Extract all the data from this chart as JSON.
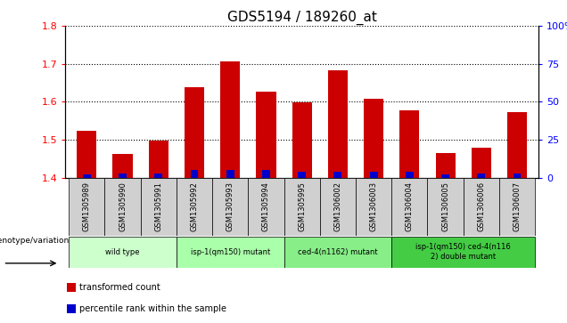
{
  "title": "GDS5194 / 189260_at",
  "samples": [
    "GSM1305989",
    "GSM1305990",
    "GSM1305991",
    "GSM1305992",
    "GSM1305993",
    "GSM1305994",
    "GSM1305995",
    "GSM1306002",
    "GSM1306003",
    "GSM1306004",
    "GSM1306005",
    "GSM1306006",
    "GSM1306007"
  ],
  "transformed_count": [
    1.524,
    1.463,
    1.497,
    1.638,
    1.706,
    1.627,
    1.598,
    1.682,
    1.608,
    1.577,
    1.465,
    1.478,
    1.573
  ],
  "percentile_rank": [
    2,
    3,
    3,
    5,
    5,
    5,
    4,
    4,
    4,
    4,
    2,
    3,
    3
  ],
  "ymin": 1.4,
  "ymax": 1.8,
  "yticks": [
    1.4,
    1.5,
    1.6,
    1.7,
    1.8
  ],
  "right_yticks": [
    0,
    25,
    50,
    75,
    100
  ],
  "bar_color_red": "#cc0000",
  "bar_color_blue": "#0000cc",
  "bar_width": 0.55,
  "blue_bar_width": 0.22,
  "genotype_groups": [
    {
      "label": "wild type",
      "start": 0,
      "end": 2,
      "color": "#ccffcc"
    },
    {
      "label": "isp-1(qm150) mutant",
      "start": 3,
      "end": 5,
      "color": "#aaffaa"
    },
    {
      "label": "ced-4(n1162) mutant",
      "start": 6,
      "end": 8,
      "color": "#88ee88"
    },
    {
      "label": "isp-1(qm150) ced-4(n116\n2) double mutant",
      "start": 9,
      "end": 12,
      "color": "#44cc44"
    }
  ],
  "legend_items": [
    {
      "label": "transformed count",
      "color": "#cc0000"
    },
    {
      "label": "percentile rank within the sample",
      "color": "#0000cc"
    }
  ],
  "xlabel_left": "genotype/variation",
  "cell_bg": "#d0d0d0",
  "plot_bg": "#ffffff",
  "title_fontsize": 11,
  "tick_fontsize": 8,
  "sample_fontsize": 6
}
